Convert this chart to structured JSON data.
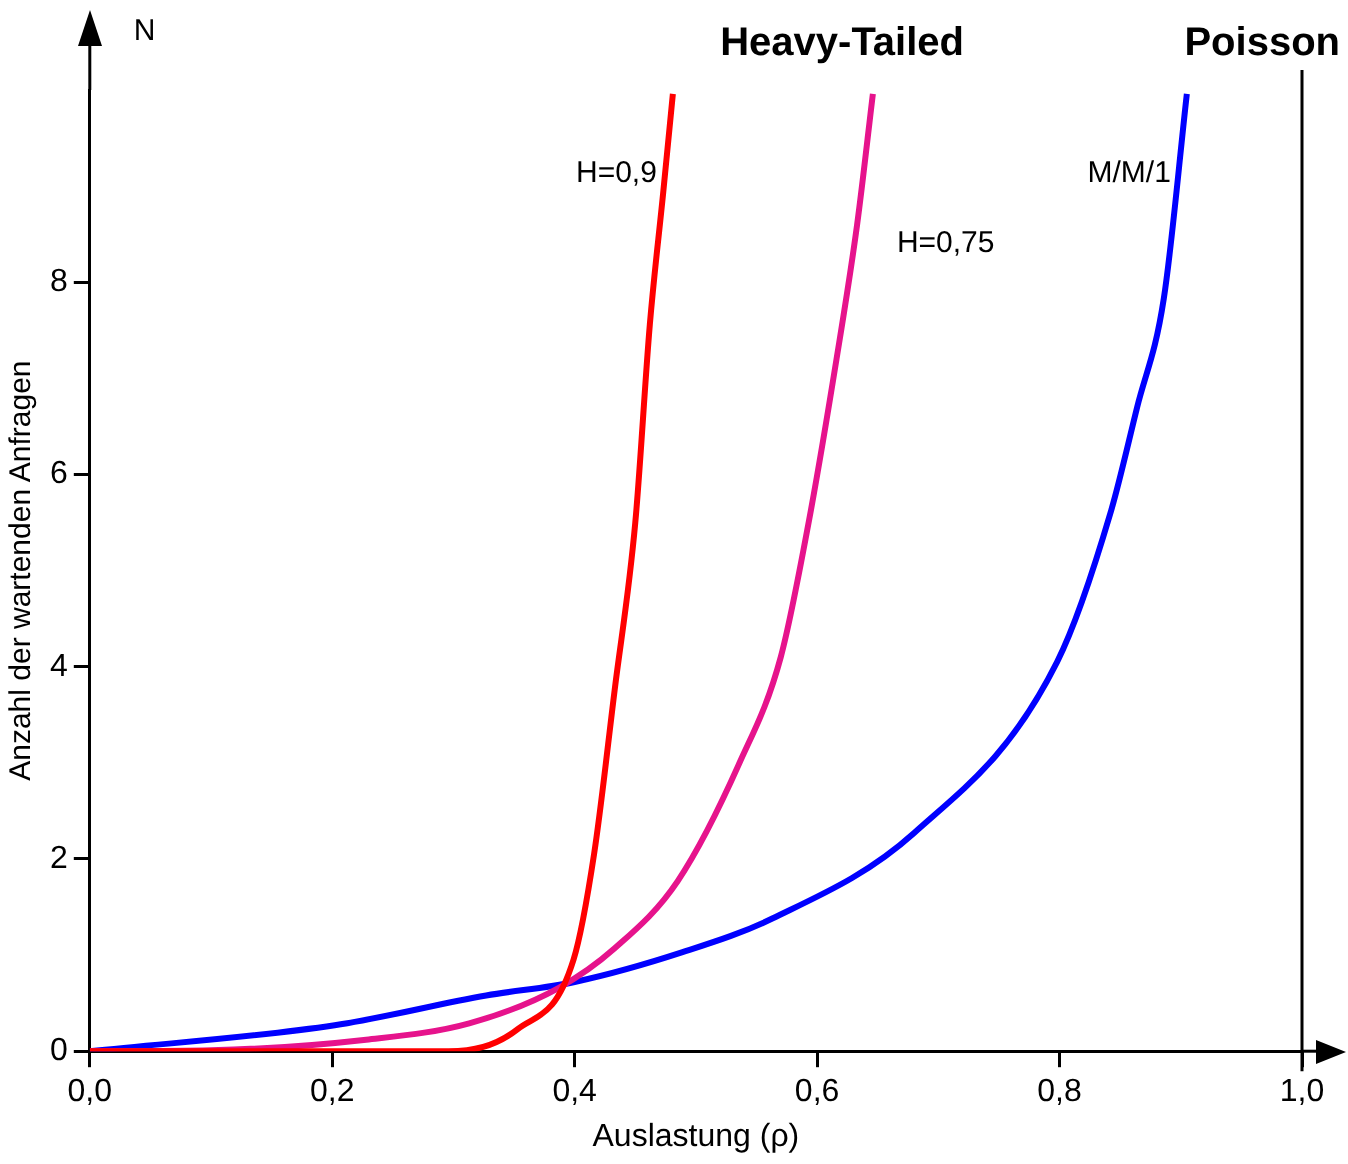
{
  "chart_data": {
    "type": "line",
    "xlabel": "Auslastung (ρ)",
    "ylabel": "Anzahl der wartenden Anfragen",
    "annotations": [
      "Heavy-Tailed",
      "Poisson",
      "N"
    ],
    "xlim": [
      0,
      1
    ],
    "ylim": [
      0,
      10
    ],
    "xticks": [
      {
        "value": 0,
        "label": "0,0"
      },
      {
        "value": 0.2,
        "label": "0,2"
      },
      {
        "value": 0.4,
        "label": "0,4"
      },
      {
        "value": 0.6,
        "label": "0,6"
      },
      {
        "value": 0.8,
        "label": "0,8"
      },
      {
        "value": 1,
        "label": "1,0"
      }
    ],
    "yticks": [
      0,
      2,
      4,
      6,
      8
    ],
    "grid": false,
    "legend": false,
    "marker": "none",
    "line_style": "solid",
    "ref_lines": [
      {
        "axis": "x",
        "value": 1,
        "color": "#000000"
      }
    ],
    "series": [
      {
        "name": "H=0,9",
        "color": "#ff0000",
        "x": [
          0,
          0.2,
          0.296,
          0.353,
          0.399,
          0.416,
          0.433,
          0.45,
          0.462,
          0.473,
          0.481
        ],
        "values": [
          0,
          0,
          0,
          0.23,
          0.95,
          2.05,
          3.76,
          5.5,
          7.56,
          8.93,
          9.96
        ]
      },
      {
        "name": "H=0,75",
        "color": "#e6138c",
        "x": [
          0,
          0.1,
          0.228,
          0.313,
          0.387,
          0.433,
          0.485,
          0.536,
          0.57,
          0.593,
          0.616,
          0.633,
          0.646
        ],
        "values": [
          0,
          0.01,
          0.12,
          0.29,
          0.66,
          1.07,
          1.77,
          3.0,
          4.1,
          5.5,
          7.2,
          8.6,
          9.96
        ]
      },
      {
        "name": "M/M/1",
        "color": "#0000ff",
        "x": [
          0,
          0.202,
          0.327,
          0.4,
          0.489,
          0.563,
          0.68,
          0.798,
          0.842,
          0.864,
          0.886,
          0.905
        ],
        "values": [
          0,
          0.27,
          0.58,
          0.72,
          1.03,
          1.38,
          2.27,
          4.05,
          5.6,
          6.7,
          7.83,
          9.96
        ]
      }
    ]
  }
}
